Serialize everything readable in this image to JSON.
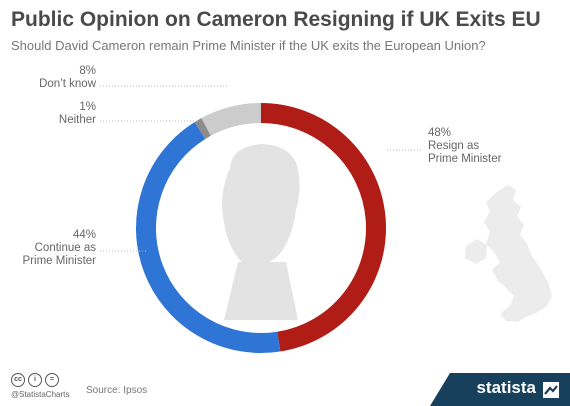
{
  "header": {
    "title": "Public Opinion on Cameron Resigning if UK Exits EU",
    "subtitle": "Should David Cameron remain Prime Minister if the UK exits the European Union?"
  },
  "chart_data": {
    "type": "pie",
    "variant": "donut",
    "categories": [
      "Resign as Prime Minister",
      "Continue as Prime Minister",
      "Neither",
      "Don't know"
    ],
    "values": [
      48,
      44,
      1,
      8
    ],
    "colors": [
      "#b01d16",
      "#2e75d5",
      "#8c8c8c",
      "#cccccc"
    ],
    "labels": [
      {
        "value": "48%",
        "lines": [
          "Resign as",
          "Prime Minister"
        ]
      },
      {
        "value": "44%",
        "lines": [
          "Continue as",
          "Prime Minister"
        ]
      },
      {
        "value": "1%",
        "lines": [
          "Neither"
        ]
      },
      {
        "value": "8%",
        "lines": [
          "Don’t know"
        ]
      }
    ]
  },
  "footer": {
    "handle": "@StatistaCharts",
    "source": "Source: Ipsos",
    "brand": "statista"
  }
}
